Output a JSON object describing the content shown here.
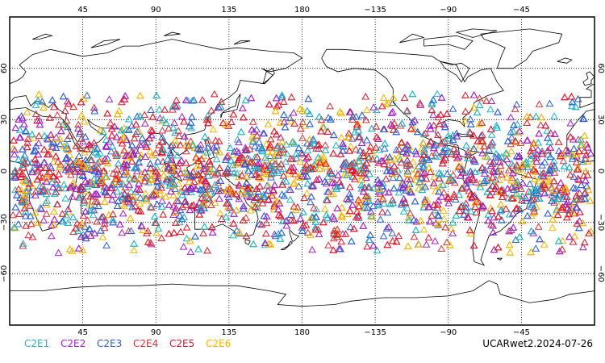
{
  "chart_data": {
    "type": "scatter",
    "title": "",
    "projection": "equirectangular",
    "lon_range_centered_on": 180,
    "lon_ticks": [
      "45",
      "90",
      "135",
      "180",
      "−135",
      "−90",
      "−45"
    ],
    "lat_ticks_left": [
      "60",
      "30",
      "0",
      "−30",
      "−60"
    ],
    "lat_ticks_right": [
      "60",
      "30",
      "0",
      "−30",
      "−60"
    ],
    "lat_tick_values": [
      60,
      30,
      0,
      -30,
      -60
    ],
    "lon_tick_values": [
      45,
      90,
      135,
      180,
      225,
      270,
      315
    ],
    "grid": true,
    "marker": "triangle-open",
    "series": [
      {
        "name": "C2E1",
        "color": "#1fb3c7"
      },
      {
        "name": "C2E2",
        "color": "#a020c8"
      },
      {
        "name": "C2E3",
        "color": "#2a5fd6"
      },
      {
        "name": "C2E4",
        "color": "#d6333b"
      },
      {
        "name": "C2E5",
        "color": "#e8102a"
      },
      {
        "name": "C2E6",
        "color": "#f5b400"
      }
    ],
    "point_latitude_band": [
      -48,
      45
    ],
    "product_label": "UCARwet2.2024-07-26"
  }
}
